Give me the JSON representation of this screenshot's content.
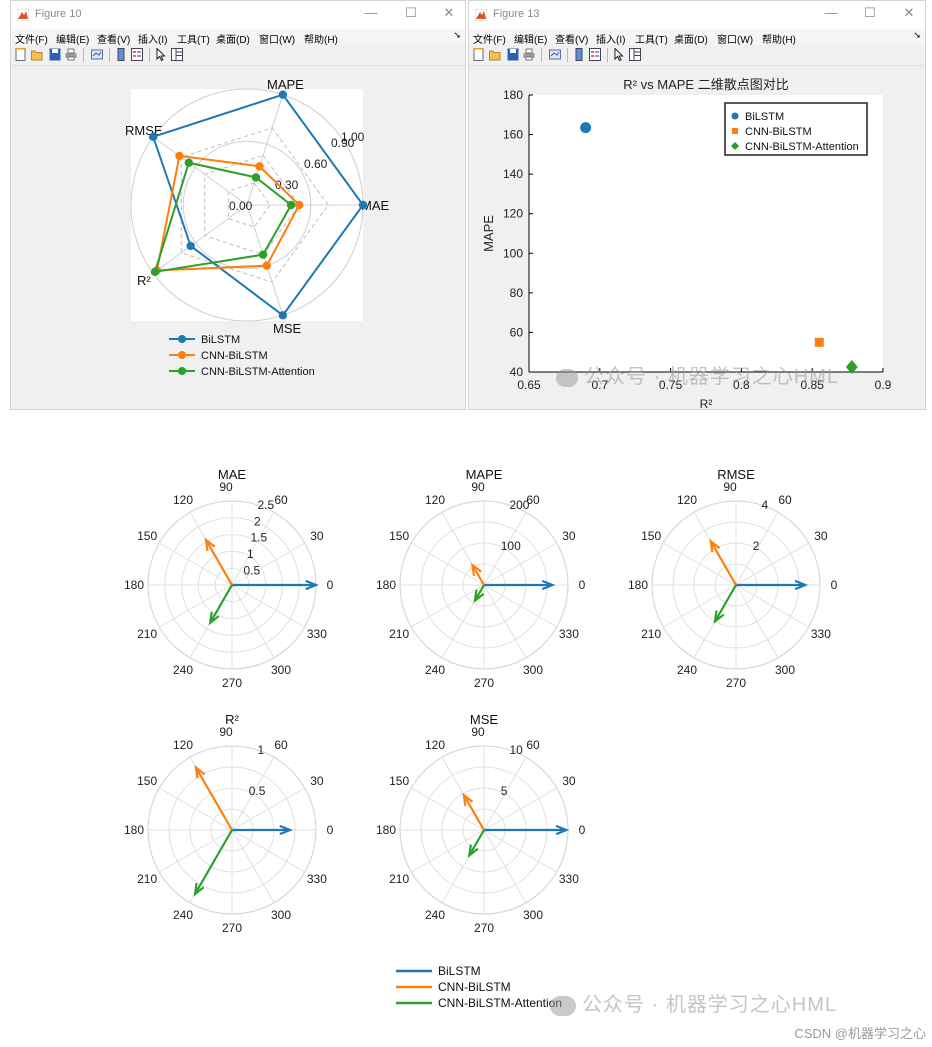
{
  "windows": [
    {
      "title": "Figure 10",
      "menu": [
        "文件(F)",
        "编辑(E)",
        "查看(V)",
        "插入(I)",
        "工具(T)",
        "桌面(D)",
        "窗口(W)",
        "帮助(H)"
      ],
      "controls": {
        "minimize": "—",
        "maximize": "☐",
        "close": "✕"
      }
    },
    {
      "title": "Figure 13",
      "menu": [
        "文件(F)",
        "编辑(E)",
        "查看(V)",
        "插入(I)",
        "工具(T)",
        "桌面(D)",
        "窗口(W)",
        "帮助(H)"
      ],
      "controls": {
        "minimize": "—",
        "maximize": "☐",
        "close": "✕"
      }
    }
  ],
  "colors": {
    "bilstm": "#1f77b4",
    "cnn_bilstm": "#ff7f0e",
    "cnn_bilstm_attention": "#2ca02c"
  },
  "legend_labels": [
    "BiLSTM",
    "CNN-BiLSTM",
    "CNN-BiLSTM-Attention"
  ],
  "watermark": {
    "text1": "公众号 · 机器学习之心HML",
    "text2": "公众号 · 机器学习之心HML",
    "credit": "CSDN @机器学习之心"
  },
  "chart_data": [
    {
      "type": "radar",
      "axes": [
        "MAPE",
        "MAE",
        "MSE",
        "R²",
        "RMSE"
      ],
      "ring_labels": [
        "0.00",
        "0.30",
        "0.60",
        "0.90",
        "1.00"
      ],
      "series": [
        {
          "name": "BiLSTM",
          "values": [
            1.0,
            1.0,
            1.0,
            0.6,
            1.0
          ]
        },
        {
          "name": "CNN-BiLSTM",
          "values": [
            0.35,
            0.45,
            0.55,
            0.96,
            0.72
          ]
        },
        {
          "name": "CNN-BiLSTM-Attention",
          "values": [
            0.25,
            0.38,
            0.45,
            0.98,
            0.62
          ]
        }
      ]
    },
    {
      "type": "scatter",
      "title": "R² vs MAPE 二维散点图对比",
      "xlabel": "R²",
      "ylabel": "MAPE",
      "xlim": [
        0.65,
        0.9
      ],
      "ylim": [
        40,
        180
      ],
      "xticks": [
        "0.65",
        "0.7",
        "0.75",
        "0.8",
        "0.85",
        "0.9"
      ],
      "yticks": [
        "40",
        "60",
        "80",
        "100",
        "120",
        "140",
        "160",
        "180"
      ],
      "legend_position": "top-right",
      "series": [
        {
          "name": "BiLSTM",
          "marker": "circle",
          "x": 0.69,
          "y": 163.5
        },
        {
          "name": "CNN-BiLSTM",
          "marker": "square",
          "x": 0.855,
          "y": 55
        },
        {
          "name": "CNN-BiLSTM-Attention",
          "marker": "diamond",
          "x": 0.878,
          "y": 42.5
        }
      ]
    },
    {
      "type": "compass",
      "title": "MAE",
      "rmax": 2.5,
      "rlabels": [
        "0.5",
        "1",
        "1.5",
        "2",
        "2.5"
      ],
      "series": [
        {
          "name": "BiLSTM",
          "magnitude": 2.5,
          "angle_deg": 0
        },
        {
          "name": "CNN-BiLSTM",
          "magnitude": 1.55,
          "angle_deg": 120
        },
        {
          "name": "CNN-BiLSTM-Attention",
          "magnitude": 1.3,
          "angle_deg": 240
        }
      ]
    },
    {
      "type": "compass",
      "title": "MAPE",
      "rmax": 200,
      "rlabels": [
        "100",
        "200"
      ],
      "series": [
        {
          "name": "BiLSTM",
          "magnitude": 163,
          "angle_deg": 0
        },
        {
          "name": "CNN-BiLSTM",
          "magnitude": 55,
          "angle_deg": 120
        },
        {
          "name": "CNN-BiLSTM-Attention",
          "magnitude": 43,
          "angle_deg": 240
        }
      ]
    },
    {
      "type": "compass",
      "title": "RMSE",
      "rmax": 4,
      "rlabels": [
        "2",
        "4"
      ],
      "series": [
        {
          "name": "BiLSTM",
          "magnitude": 3.3,
          "angle_deg": 0
        },
        {
          "name": "CNN-BiLSTM",
          "magnitude": 2.4,
          "angle_deg": 120
        },
        {
          "name": "CNN-BiLSTM-Attention",
          "magnitude": 2.0,
          "angle_deg": 240
        }
      ]
    },
    {
      "type": "compass",
      "title": "R²",
      "rmax": 1,
      "rlabels": [
        "0.5",
        "1"
      ],
      "series": [
        {
          "name": "BiLSTM",
          "magnitude": 0.69,
          "angle_deg": 0
        },
        {
          "name": "CNN-BiLSTM",
          "magnitude": 0.86,
          "angle_deg": 120
        },
        {
          "name": "CNN-BiLSTM-Attention",
          "magnitude": 0.88,
          "angle_deg": 240
        }
      ]
    },
    {
      "type": "compass",
      "title": "MSE",
      "rmax": 10,
      "rlabels": [
        "5",
        "10"
      ],
      "series": [
        {
          "name": "BiLSTM",
          "magnitude": 9.8,
          "angle_deg": 0
        },
        {
          "name": "CNN-BiLSTM",
          "magnitude": 4.8,
          "angle_deg": 120
        },
        {
          "name": "CNN-BiLSTM-Attention",
          "magnitude": 3.5,
          "angle_deg": 240
        }
      ]
    }
  ]
}
